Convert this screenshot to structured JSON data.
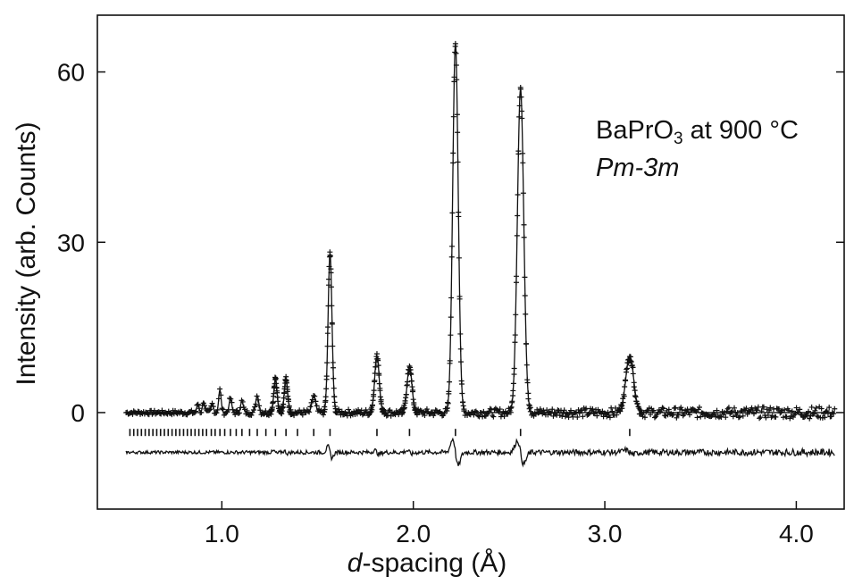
{
  "chart_data": {
    "type": "scatter",
    "title": "",
    "annotation": {
      "compound_prefix": "BaPrO",
      "compound_subscript": "3",
      "compound_suffix": " at 900 °C",
      "space_group": "Pm-3m"
    },
    "xlabel_italic": "d",
    "xlabel_rest": "-spacing (Å)",
    "xlabel": "d-spacing (Å)",
    "ylabel": "Intensity (arb. Counts)",
    "xlim": [
      0.35,
      4.25
    ],
    "ylim": [
      -17,
      70
    ],
    "xticks": [
      1.0,
      2.0,
      3.0,
      4.0
    ],
    "xtick_labels": [
      "1.0",
      "2.0",
      "3.0",
      "4.0"
    ],
    "yticks": [
      0,
      30,
      60
    ],
    "ytick_labels": [
      "0",
      "30",
      "60"
    ],
    "grid": false,
    "data_range": [
      0.5,
      4.2
    ],
    "baseline": 0,
    "difference_offset": -7,
    "reflection_marker_y": -3.5,
    "peaks": [
      {
        "d": 3.13,
        "intensity": 10
      },
      {
        "d": 2.56,
        "intensity": 57
      },
      {
        "d": 2.22,
        "intensity": 65
      },
      {
        "d": 1.98,
        "intensity": 8
      },
      {
        "d": 1.81,
        "intensity": 10
      },
      {
        "d": 1.565,
        "intensity": 28
      },
      {
        "d": 1.48,
        "intensity": 3
      },
      {
        "d": 1.335,
        "intensity": 6
      },
      {
        "d": 1.28,
        "intensity": 6
      },
      {
        "d": 1.185,
        "intensity": 3
      },
      {
        "d": 1.105,
        "intensity": 2
      },
      {
        "d": 1.045,
        "intensity": 2.5
      },
      {
        "d": 0.99,
        "intensity": 4
      },
      {
        "d": 0.95,
        "intensity": 1.5
      },
      {
        "d": 0.905,
        "intensity": 2
      },
      {
        "d": 0.875,
        "intensity": 1.5
      }
    ],
    "reflections": [
      3.13,
      2.56,
      2.22,
      1.98,
      1.81,
      1.565,
      1.48,
      1.395,
      1.335,
      1.28,
      1.23,
      1.185,
      1.145,
      1.105,
      1.075,
      1.045,
      1.015,
      0.99,
      0.965,
      0.945,
      0.92,
      0.9,
      0.88,
      0.86,
      0.84,
      0.82,
      0.8,
      0.78,
      0.76,
      0.74,
      0.72,
      0.7,
      0.68,
      0.66,
      0.64,
      0.62,
      0.6,
      0.58,
      0.56,
      0.54,
      0.52
    ],
    "series": [
      {
        "role": "observed",
        "marker": "+",
        "color": "#111111"
      },
      {
        "role": "calculated",
        "line": "solid",
        "color": "#111111"
      },
      {
        "role": "difference",
        "line": "solid",
        "color": "#111111"
      },
      {
        "role": "reflection-positions",
        "marker": "|",
        "color": "#111111"
      }
    ]
  }
}
